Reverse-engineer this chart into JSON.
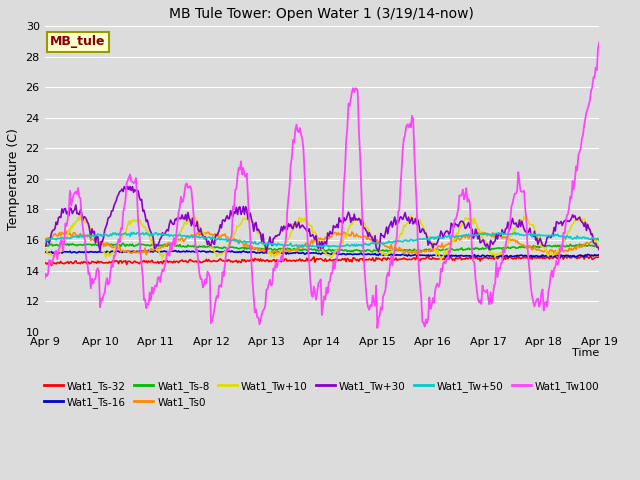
{
  "title": "MB Tule Tower: Open Water 1 (3/19/14-now)",
  "xlabel": "Time",
  "ylabel": "Temperature (C)",
  "ylim": [
    10,
    30
  ],
  "yticks": [
    10,
    12,
    14,
    16,
    18,
    20,
    22,
    24,
    26,
    28,
    30
  ],
  "background_color": "#dcdcdc",
  "plot_bg_color": "#dcdcdc",
  "grid_color": "#ffffff",
  "series": [
    {
      "label": "Wat1_Ts-32",
      "color": "#ff0000"
    },
    {
      "label": "Wat1_Ts-16",
      "color": "#0000cc"
    },
    {
      "label": "Wat1_Ts-8",
      "color": "#00bb00"
    },
    {
      "label": "Wat1_Ts0",
      "color": "#ff8800"
    },
    {
      "label": "Wat1_Tw+10",
      "color": "#dddd00"
    },
    {
      "label": "Wat1_Tw+30",
      "color": "#8800cc"
    },
    {
      "label": "Wat1_Tw+50",
      "color": "#00cccc"
    },
    {
      "label": "Wat1_Tw100",
      "color": "#ff44ff"
    }
  ],
  "xtick_labels": [
    "Apr 9",
    "Apr 10",
    "Apr 11",
    "Apr 12",
    "Apr 13",
    "Apr 14",
    "Apr 15",
    "Apr 16",
    "Apr 17",
    "Apr 18",
    "Apr 19"
  ],
  "legend_box": {
    "text": "MB_tule",
    "bg": "#ffffcc",
    "border": "#999900",
    "text_color": "#880000"
  }
}
